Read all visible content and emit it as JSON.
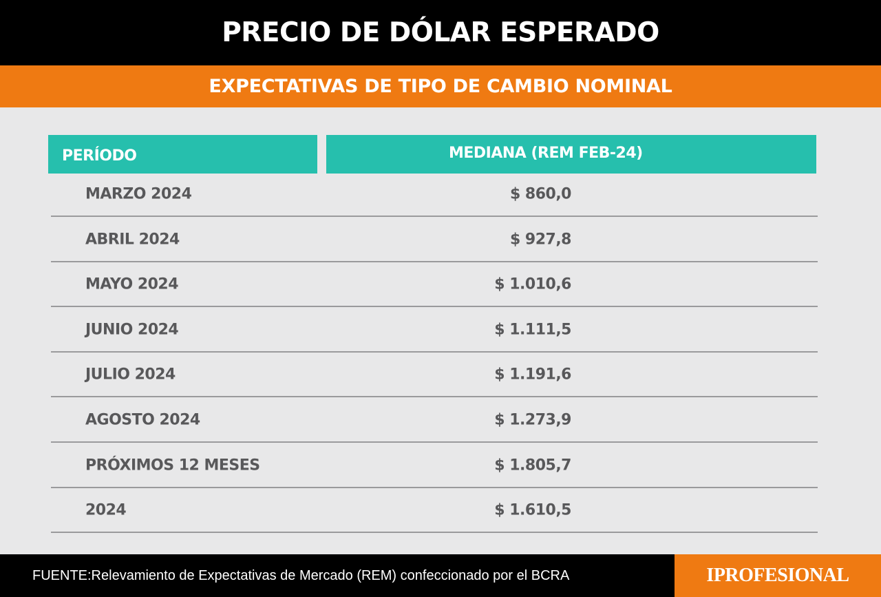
{
  "header": {
    "title": "PRECIO DE DÓLAR ESPERADO",
    "subtitle": "EXPECTATIVAS DE TIPO DE CAMBIO NOMINAL"
  },
  "table": {
    "columns": [
      "PERÍODO",
      "MEDIANA (REM FEB-24)"
    ],
    "rows": [
      {
        "period": "MARZO 2024",
        "value": "$ 860,0"
      },
      {
        "period": "ABRIL 2024",
        "value": "$ 927,8"
      },
      {
        "period": "MAYO 2024",
        "value": "$ 1.010,6"
      },
      {
        "period": "JUNIO 2024",
        "value": "$ 1.111,5"
      },
      {
        "period": "JULIO 2024",
        "value": "$ 1.191,6"
      },
      {
        "period": "AGOSTO 2024",
        "value": "$ 1.273,9"
      },
      {
        "period": "PRÓXIMOS 12 MESES",
        "value": "$ 1.805,7"
      },
      {
        "period": "2024",
        "value": "$ 1.610,5"
      }
    ]
  },
  "footer": {
    "source": "FUENTE:Relevamiento de Expectativas de Mercado (REM) confeccionado por el BCRA",
    "brand": "IPROFESIONAL"
  },
  "colors": {
    "title_bg": "#000000",
    "accent_orange": "#ef7a12",
    "header_teal": "#26bfad",
    "text_gray": "#58585a",
    "background": "#e8e8e9"
  },
  "chart_data": {
    "type": "table",
    "title": "PRECIO DE DÓLAR ESPERADO",
    "subtitle": "EXPECTATIVAS DE TIPO DE CAMBIO NOMINAL",
    "columns": [
      "PERÍODO",
      "MEDIANA (REM FEB-24)"
    ],
    "categories": [
      "MARZO 2024",
      "ABRIL 2024",
      "MAYO 2024",
      "JUNIO 2024",
      "JULIO 2024",
      "AGOSTO 2024",
      "PRÓXIMOS 12 MESES",
      "2024"
    ],
    "values": [
      860.0,
      927.8,
      1010.6,
      1111.5,
      1191.6,
      1273.9,
      1805.7,
      1610.5
    ]
  }
}
